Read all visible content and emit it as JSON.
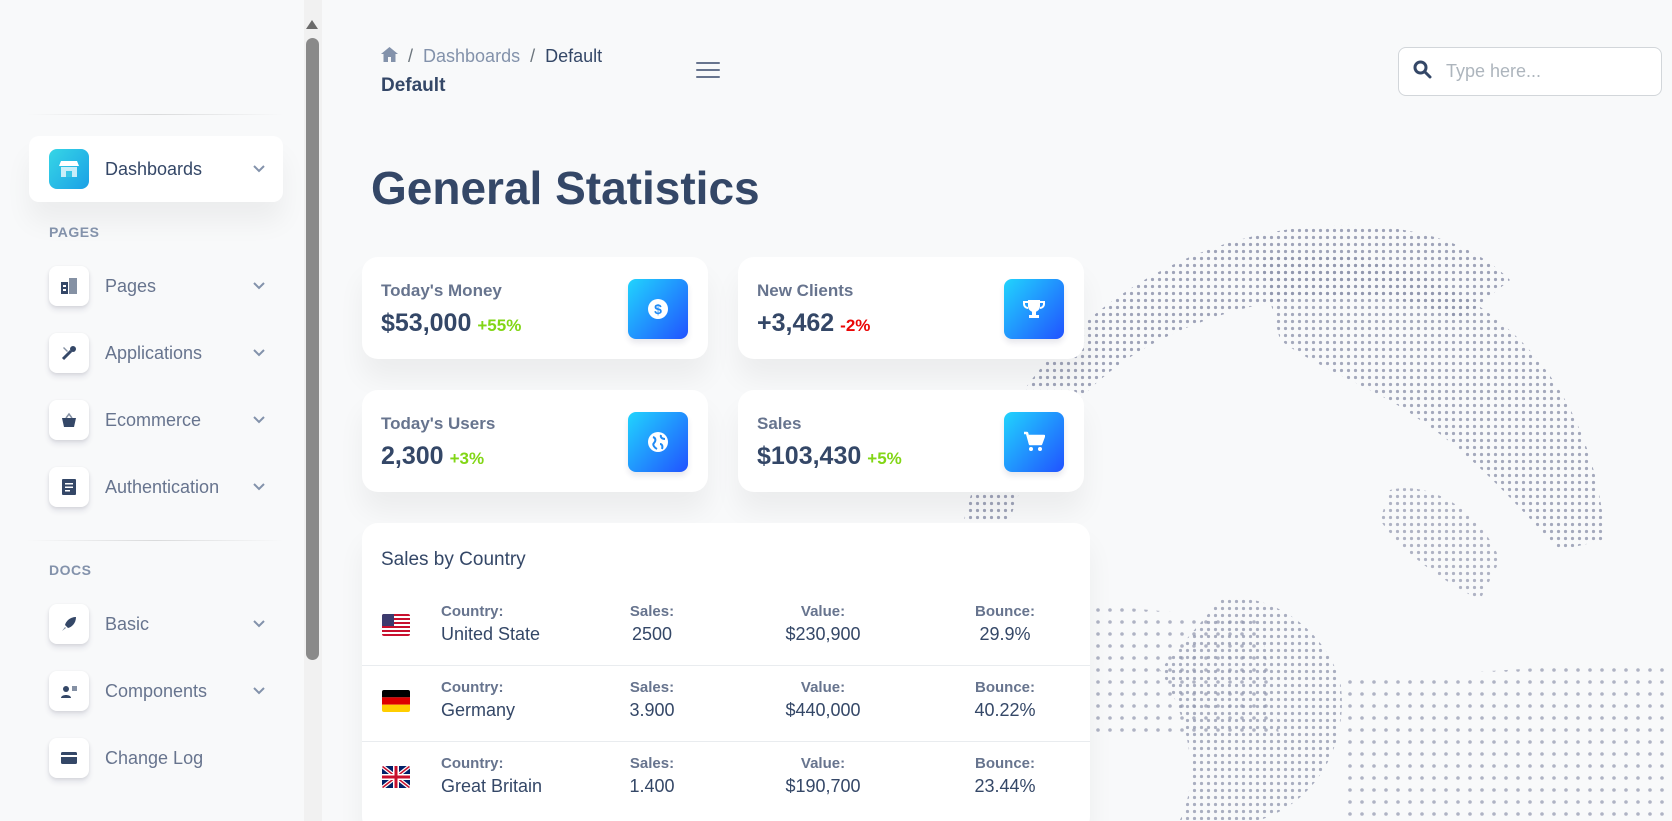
{
  "sidebar": {
    "items_top": [
      {
        "label": "Dashboards",
        "icon": "shop-icon",
        "active": true,
        "chevron": true
      }
    ],
    "section_pages": "PAGES",
    "pages_items": [
      {
        "label": "Pages",
        "icon": "office-icon",
        "chevron": true
      },
      {
        "label": "Applications",
        "icon": "tools-icon",
        "chevron": true
      },
      {
        "label": "Ecommerce",
        "icon": "basket-icon",
        "chevron": true
      },
      {
        "label": "Authentication",
        "icon": "document-icon",
        "chevron": true
      }
    ],
    "section_docs": "DOCS",
    "docs_items": [
      {
        "label": "Basic",
        "icon": "rocket-icon",
        "chevron": true
      },
      {
        "label": "Components",
        "icon": "user-card-icon",
        "chevron": true
      },
      {
        "label": "Change Log",
        "icon": "credit-card-icon",
        "chevron": false
      }
    ]
  },
  "header": {
    "breadcrumb": [
      "Dashboards",
      "Default"
    ],
    "page_subtitle": "Default",
    "search_placeholder": "Type here..."
  },
  "main": {
    "title": "General Statistics",
    "stats": [
      {
        "label": "Today's Money",
        "value": "$53,000",
        "change": "+55%",
        "trend": "positive",
        "icon": "dollar-icon"
      },
      {
        "label": "New Clients",
        "value": "+3,462",
        "change": "-2%",
        "trend": "negative",
        "icon": "trophy-icon"
      },
      {
        "label": "Today's Users",
        "value": "2,300",
        "change": "+3%",
        "trend": "positive",
        "icon": "globe-icon"
      },
      {
        "label": "Sales",
        "value": "$103,430",
        "change": "+5%",
        "trend": "positive",
        "icon": "cart-icon"
      }
    ],
    "sales_table": {
      "title": "Sales by Country",
      "labels": {
        "country": "Country:",
        "sales": "Sales:",
        "value": "Value:",
        "bounce": "Bounce:"
      },
      "rows": [
        {
          "flag": "us-flag",
          "country": "United State",
          "sales": "2500",
          "value": "$230,900",
          "bounce": "29.9%"
        },
        {
          "flag": "de-flag",
          "country": "Germany",
          "sales": "3.900",
          "value": "$440,000",
          "bounce": "40.22%"
        },
        {
          "flag": "gb-flag",
          "country": "Great Britain",
          "sales": "1.400",
          "value": "$190,700",
          "bounce": "23.44%"
        }
      ]
    }
  },
  "colors": {
    "accent_gradient_start": "#2152ff",
    "accent_gradient_end": "#21d4fd",
    "positive": "#82d616",
    "negative": "#ea0606",
    "text_dark": "#344767",
    "text_muted": "#67748e"
  }
}
